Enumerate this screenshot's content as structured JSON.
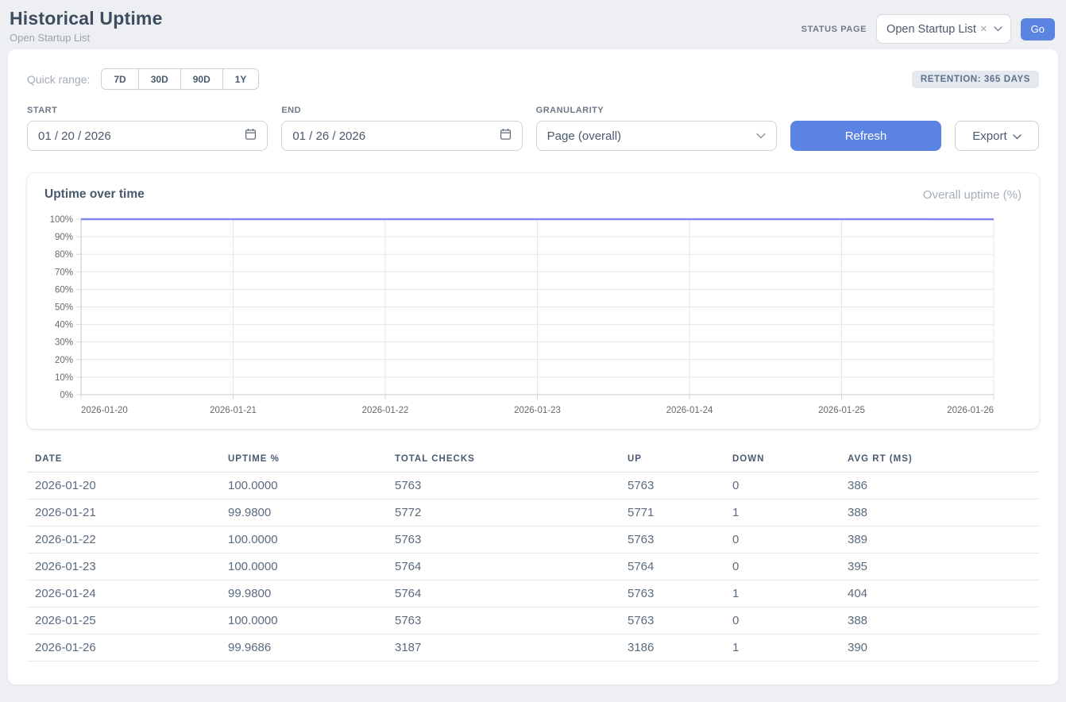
{
  "header": {
    "title": "Historical Uptime",
    "subtitle": "Open Startup List",
    "status_page_label": "STATUS PAGE",
    "status_page_value": "Open Startup List",
    "go_label": "Go"
  },
  "filters": {
    "quick_range_label": "Quick range:",
    "quick_ranges": [
      "7D",
      "30D",
      "90D",
      "1Y"
    ],
    "retention_badge": "RETENTION: 365 DAYS",
    "start_label": "START",
    "start_value": "01 / 20 / 2026",
    "end_label": "END",
    "end_value": "01 / 26 / 2026",
    "granularity_label": "GRANULARITY",
    "granularity_value": "Page (overall)",
    "refresh_label": "Refresh",
    "export_label": "Export"
  },
  "chart": {
    "title": "Uptime over time",
    "legend": "Overall uptime (%)"
  },
  "chart_data": {
    "type": "line",
    "title": "Uptime over time",
    "x": [
      "2026-01-20",
      "2026-01-21",
      "2026-01-22",
      "2026-01-23",
      "2026-01-24",
      "2026-01-25",
      "2026-01-26"
    ],
    "series": [
      {
        "name": "Overall uptime (%)",
        "values": [
          100.0,
          99.98,
          100.0,
          100.0,
          99.98,
          100.0,
          99.9686
        ]
      }
    ],
    "ylim": [
      0,
      100
    ],
    "ytick_step": 10,
    "ytick_suffix": "%",
    "grid": true,
    "legend_position": "top-right",
    "line_color": "#8287f0"
  },
  "table": {
    "columns": [
      "DATE",
      "UPTIME %",
      "TOTAL CHECKS",
      "UP",
      "DOWN",
      "AVG RT (MS)"
    ],
    "rows": [
      [
        "2026-01-20",
        "100.0000",
        "5763",
        "5763",
        "0",
        "386"
      ],
      [
        "2026-01-21",
        "99.9800",
        "5772",
        "5771",
        "1",
        "388"
      ],
      [
        "2026-01-22",
        "100.0000",
        "5763",
        "5763",
        "0",
        "389"
      ],
      [
        "2026-01-23",
        "100.0000",
        "5764",
        "5764",
        "0",
        "395"
      ],
      [
        "2026-01-24",
        "99.9800",
        "5764",
        "5763",
        "1",
        "404"
      ],
      [
        "2026-01-25",
        "100.0000",
        "5763",
        "5763",
        "0",
        "388"
      ],
      [
        "2026-01-26",
        "99.9686",
        "3187",
        "3186",
        "1",
        "390"
      ]
    ]
  },
  "colors": {
    "accent": "#5b84e2",
    "chart_line": "#8287f0",
    "grid_line": "#e7e7e7",
    "axis_border": "#c6c6c6"
  }
}
